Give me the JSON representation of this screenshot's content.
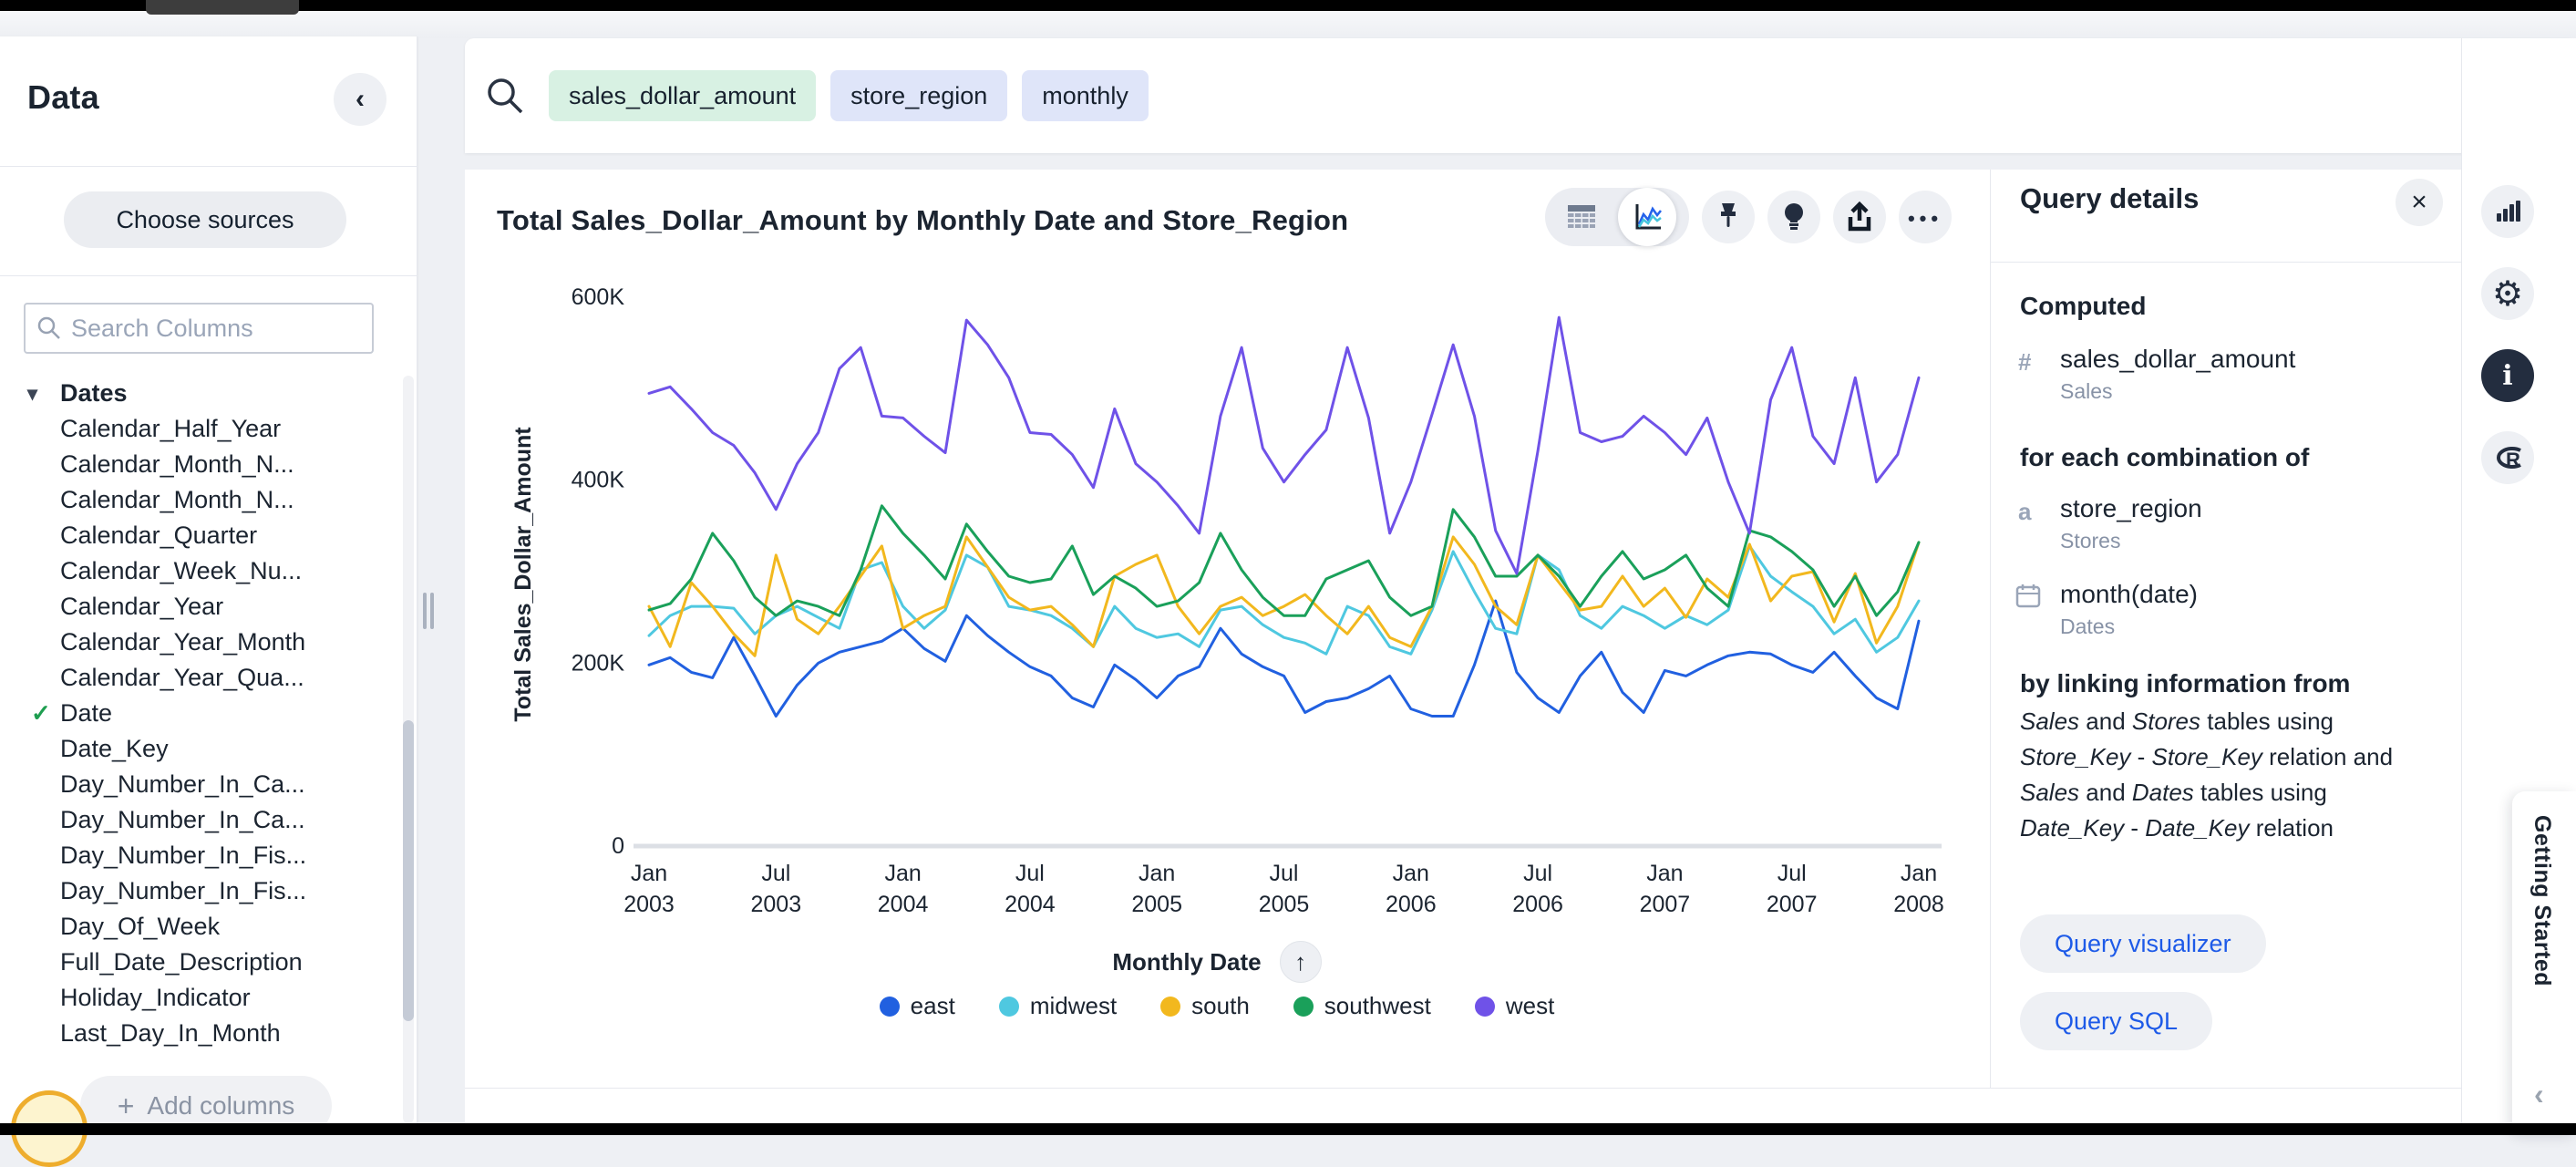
{
  "sidebar": {
    "title": "Data",
    "choose_sources": "Choose sources",
    "search_placeholder": "Search Columns",
    "add_columns": "Add columns",
    "group_label": "Dates",
    "columns": [
      {
        "label": "Calendar_Half_Year",
        "checked": false
      },
      {
        "label": "Calendar_Month_N...",
        "checked": false
      },
      {
        "label": "Calendar_Month_N...",
        "checked": false
      },
      {
        "label": "Calendar_Quarter",
        "checked": false
      },
      {
        "label": "Calendar_Week_Nu...",
        "checked": false
      },
      {
        "label": "Calendar_Year",
        "checked": false
      },
      {
        "label": "Calendar_Year_Month",
        "checked": false
      },
      {
        "label": "Calendar_Year_Qua...",
        "checked": false
      },
      {
        "label": "Date",
        "checked": true
      },
      {
        "label": "Date_Key",
        "checked": false
      },
      {
        "label": "Day_Number_In_Ca...",
        "checked": false
      },
      {
        "label": "Day_Number_In_Ca...",
        "checked": false
      },
      {
        "label": "Day_Number_In_Fis...",
        "checked": false
      },
      {
        "label": "Day_Number_In_Fis...",
        "checked": false
      },
      {
        "label": "Day_Of_Week",
        "checked": false
      },
      {
        "label": "Full_Date_Description",
        "checked": false
      },
      {
        "label": "Holiday_Indicator",
        "checked": false
      },
      {
        "label": "Last_Day_In_Month",
        "checked": false
      }
    ]
  },
  "search_bar": {
    "tokens": [
      {
        "text": "sales_dollar_amount",
        "type": "measure"
      },
      {
        "text": "store_region",
        "type": "attribute"
      },
      {
        "text": "monthly",
        "type": "keyword"
      }
    ],
    "close_label": "×"
  },
  "chart": {
    "title": "Total Sales_Dollar_Amount by Monthly Date and Store_Region",
    "x_axis_title": "Monthly Date",
    "sort_arrow": "↑"
  },
  "chart_data": {
    "type": "line",
    "title": "Total Sales_Dollar_Amount by Monthly Date and Store_Region",
    "xlabel": "Monthly Date",
    "ylabel": "Total Sales_Dollar_Amount",
    "values_unit": "USD thousands",
    "ylim": [
      0,
      600
    ],
    "grid": false,
    "legend_position": "bottom",
    "y_ticks": [
      {
        "label": "600K",
        "value": 600
      },
      {
        "label": "400K",
        "value": 400
      },
      {
        "label": "200K",
        "value": 200
      },
      {
        "label": "0",
        "value": 0
      }
    ],
    "x_tick_every": 6,
    "x_tick_labels": [
      "Jan 2003",
      "Jul 2003",
      "Jan 2004",
      "Jul 2004",
      "Jan 2005",
      "Jul 2005",
      "Jan 2006",
      "Jul 2006",
      "Jan 2007",
      "Jul 2007",
      "Jan 2008"
    ],
    "x": [
      "2003-01",
      "2003-02",
      "2003-03",
      "2003-04",
      "2003-05",
      "2003-06",
      "2003-07",
      "2003-08",
      "2003-09",
      "2003-10",
      "2003-11",
      "2003-12",
      "2004-01",
      "2004-02",
      "2004-03",
      "2004-04",
      "2004-05",
      "2004-06",
      "2004-07",
      "2004-08",
      "2004-09",
      "2004-10",
      "2004-11",
      "2004-12",
      "2005-01",
      "2005-02",
      "2005-03",
      "2005-04",
      "2005-05",
      "2005-06",
      "2005-07",
      "2005-08",
      "2005-09",
      "2005-10",
      "2005-11",
      "2005-12",
      "2006-01",
      "2006-02",
      "2006-03",
      "2006-04",
      "2006-05",
      "2006-06",
      "2006-07",
      "2006-08",
      "2006-09",
      "2006-10",
      "2006-11",
      "2006-12",
      "2007-01",
      "2007-02",
      "2007-03",
      "2007-04",
      "2007-05",
      "2007-06",
      "2007-07",
      "2007-08",
      "2007-09",
      "2007-10",
      "2007-11",
      "2007-12",
      "2008-01"
    ],
    "series": [
      {
        "name": "east",
        "color": "#2160e0",
        "values": [
          198,
          206,
          190,
          184,
          228,
          186,
          142,
          176,
          200,
          212,
          218,
          224,
          238,
          216,
          202,
          252,
          230,
          212,
          196,
          186,
          162,
          152,
          198,
          182,
          162,
          186,
          196,
          238,
          210,
          196,
          186,
          146,
          158,
          162,
          172,
          186,
          150,
          142,
          142,
          198,
          268,
          190,
          162,
          146,
          186,
          212,
          168,
          146,
          192,
          186,
          198,
          208,
          212,
          210,
          198,
          190,
          212,
          186,
          162,
          150,
          246
        ]
      },
      {
        "name": "midwest",
        "color": "#4fc8e0",
        "values": [
          230,
          252,
          262,
          262,
          260,
          232,
          252,
          262,
          250,
          238,
          302,
          310,
          262,
          238,
          258,
          318,
          305,
          262,
          258,
          252,
          238,
          218,
          262,
          238,
          228,
          232,
          218,
          258,
          262,
          242,
          228,
          222,
          210,
          262,
          252,
          218,
          210,
          258,
          322,
          278,
          238,
          232,
          318,
          302,
          252,
          238,
          262,
          252,
          238,
          252,
          242,
          258,
          328,
          295,
          278,
          262,
          232,
          248,
          212,
          228,
          268
        ]
      },
      {
        "name": "south",
        "color": "#f2b81e",
        "values": [
          262,
          218,
          288,
          262,
          232,
          208,
          318,
          248,
          232,
          262,
          295,
          328,
          238,
          252,
          262,
          338,
          305,
          272,
          258,
          262,
          242,
          218,
          295,
          308,
          318,
          262,
          232,
          262,
          272,
          252,
          262,
          275,
          252,
          232,
          262,
          228,
          218,
          262,
          338,
          308,
          262,
          242,
          318,
          288,
          258,
          262,
          295,
          262,
          282,
          250,
          292,
          272,
          330,
          268,
          295,
          300,
          245,
          298,
          222,
          262,
          332
        ]
      },
      {
        "name": "southwest",
        "color": "#1aa05a",
        "values": [
          258,
          265,
          292,
          342,
          312,
          272,
          252,
          268,
          262,
          252,
          302,
          372,
          342,
          318,
          292,
          352,
          322,
          295,
          288,
          292,
          328,
          275,
          295,
          282,
          262,
          268,
          288,
          342,
          302,
          272,
          252,
          252,
          292,
          302,
          312,
          272,
          252,
          262,
          368,
          338,
          295,
          295,
          318,
          295,
          262,
          295,
          322,
          292,
          302,
          318,
          282,
          262,
          345,
          338,
          322,
          302,
          262,
          295,
          252,
          278,
          332
        ]
      },
      {
        "name": "west",
        "color": "#6f52e8",
        "values": [
          495,
          502,
          478,
          452,
          438,
          408,
          368,
          418,
          452,
          522,
          545,
          470,
          468,
          448,
          430,
          575,
          548,
          512,
          452,
          450,
          428,
          392,
          478,
          418,
          398,
          372,
          342,
          470,
          545,
          435,
          398,
          428,
          455,
          545,
          468,
          342,
          398,
          472,
          548,
          470,
          345,
          298,
          432,
          578,
          452,
          442,
          448,
          470,
          452,
          428,
          468,
          398,
          342,
          488,
          545,
          448,
          418,
          512,
          398,
          428,
          512
        ]
      }
    ]
  },
  "query_details": {
    "title": "Query details",
    "close_label": "×",
    "computed_heading": "Computed",
    "measure": {
      "icon": "#",
      "name": "sales_dollar_amount",
      "table": "Sales"
    },
    "combination_heading": "for each combination of",
    "attribute": {
      "icon": "a",
      "name": "store_region",
      "table": "Stores"
    },
    "date_field": {
      "name": "month(date)",
      "table": "Dates"
    },
    "linking_heading": "by linking information from",
    "linking_lines": [
      [
        [
          "Sales",
          1
        ],
        [
          " and ",
          0
        ],
        [
          "Stores",
          1
        ],
        [
          " tables using",
          0
        ]
      ],
      [
        [
          "Store_Key",
          1
        ],
        [
          " - ",
          0
        ],
        [
          "Store_Key",
          1
        ],
        [
          " relation and",
          0
        ]
      ],
      [
        [
          "Sales",
          1
        ],
        [
          " and ",
          0
        ],
        [
          "Dates",
          1
        ],
        [
          " tables using",
          0
        ]
      ],
      [
        [
          "Date_Key",
          1
        ],
        [
          " - ",
          0
        ],
        [
          "Date_Key",
          1
        ],
        [
          " relation",
          0
        ]
      ]
    ],
    "buttons": {
      "visualizer": "Query visualizer",
      "sql": "Query SQL"
    }
  },
  "getting_started": {
    "label": "Getting Started"
  },
  "ui_colors": {
    "accent_blue": "#1d5ae8",
    "chip_green_bg": "#d8f1e3",
    "chip_blue_bg": "#dfe5f9",
    "check_green": "#1e9e50",
    "icon_dark": "#232d3f"
  }
}
